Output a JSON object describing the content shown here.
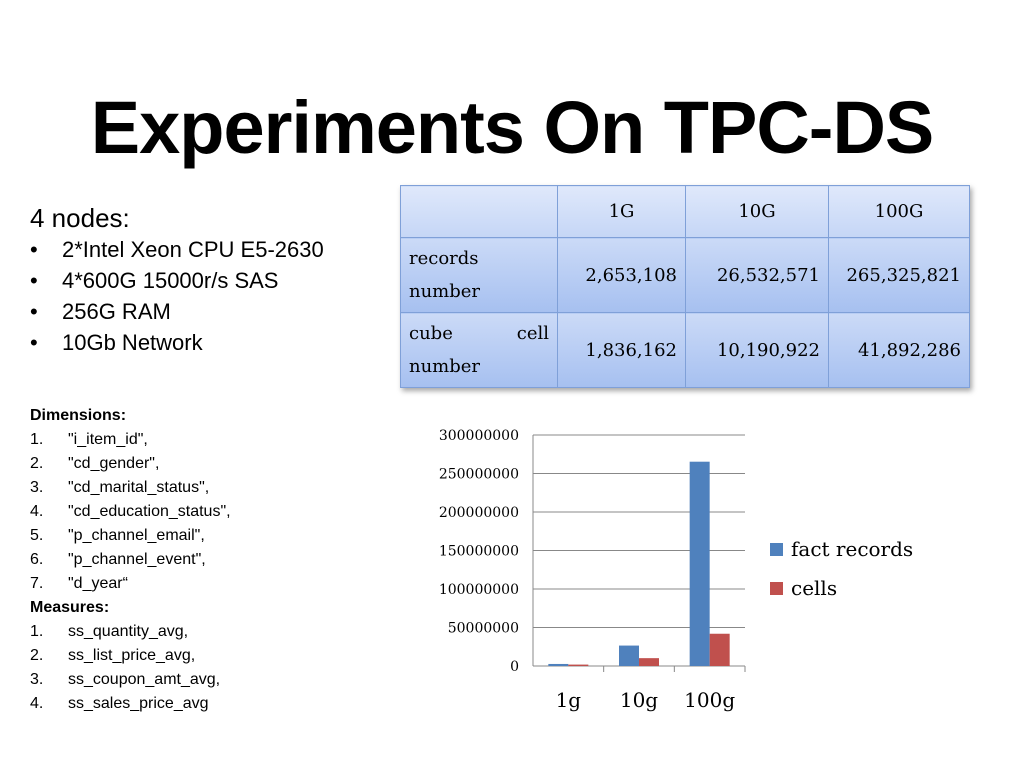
{
  "title": "Experiments On TPC-DS",
  "nodes": {
    "heading": "4 nodes:",
    "items": [
      "2*Intel Xeon CPU E5-2630",
      "4*600G 15000r/s SAS",
      "256G RAM",
      "10Gb Network"
    ]
  },
  "dimensions": {
    "heading": "Dimensions:",
    "items": [
      " \"i_item_id\",",
      "\"cd_gender\",",
      "\"cd_marital_status\",",
      "\"cd_education_status\",",
      "\"p_channel_email\",",
      "\"p_channel_event\",",
      "\"d_year“"
    ]
  },
  "measures": {
    "heading": "Measures:",
    "items": [
      "ss_quantity_avg,",
      "ss_list_price_avg,",
      "ss_coupon_amt_avg,",
      "ss_sales_price_avg"
    ]
  },
  "table": {
    "header": [
      "1G",
      "10G",
      "100G"
    ],
    "rows": [
      {
        "label": "records number",
        "values": [
          "2,653,108",
          "26,532,571",
          "265,325,821"
        ]
      },
      {
        "label": "cube cell number",
        "values": [
          "1,836,162",
          "10,190,922",
          "41,892,286"
        ]
      }
    ]
  },
  "chart_data": {
    "type": "bar",
    "categories": [
      "1g",
      "10g",
      "100g"
    ],
    "series": [
      {
        "name": "fact records",
        "color": "#4f81bd",
        "values": [
          2653108,
          26532571,
          265325821
        ]
      },
      {
        "name": "cells",
        "color": "#c0504d",
        "values": [
          1836162,
          10190922,
          41892286
        ]
      }
    ],
    "ylim": [
      0,
      300000000
    ],
    "yticks": [
      0,
      50000000,
      100000000,
      150000000,
      200000000,
      250000000,
      300000000
    ],
    "grid": true
  }
}
